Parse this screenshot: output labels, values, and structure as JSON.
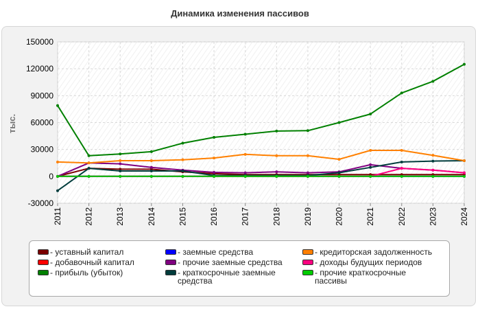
{
  "chart_data": {
    "type": "line",
    "title": "Динамика изменения пассивов",
    "ylabel": "тыс.",
    "xlabel": "",
    "x": [
      2011,
      2012,
      2013,
      2014,
      2015,
      2016,
      2017,
      2018,
      2019,
      2020,
      2021,
      2022,
      2023,
      2024
    ],
    "ylim": [
      -30000,
      150000
    ],
    "yticks": [
      -30000,
      0,
      30000,
      60000,
      90000,
      120000,
      150000
    ],
    "grid": true,
    "legend_position": "bottom",
    "series": [
      {
        "name": "уставный капитал",
        "color": "#7b0000",
        "values": [
          0,
          9000,
          8000,
          8000,
          5000,
          3000,
          2000,
          2000,
          2000,
          2000,
          2000,
          2000,
          2000,
          2000
        ]
      },
      {
        "name": "добавочный капитал",
        "color": "#ff0000",
        "values": [
          0,
          0,
          0,
          0,
          0,
          0,
          0,
          0,
          0,
          0,
          0,
          0,
          0,
          0
        ]
      },
      {
        "name": "прибыль (убыток)",
        "color": "#008000",
        "values": [
          79000,
          23000,
          25000,
          27500,
          37000,
          43500,
          47000,
          50500,
          51000,
          60000,
          69500,
          93000,
          106000,
          125000
        ]
      },
      {
        "name": "заемные средства",
        "color": "#0000ff",
        "values": [
          0,
          0,
          0,
          0,
          0,
          0,
          0,
          0,
          0,
          0,
          0,
          0,
          0,
          0
        ]
      },
      {
        "name": "прочие заемные средства",
        "color": "#800080",
        "values": [
          0,
          15000,
          14000,
          10000,
          7000,
          4500,
          4000,
          5000,
          4000,
          5000,
          13000,
          9000,
          7000,
          4000
        ]
      },
      {
        "name": "краткосрочные заемные средства",
        "color": "#003c3c",
        "values": [
          -16000,
          9000,
          6000,
          6000,
          6000,
          1000,
          1000,
          1000,
          1000,
          4000,
          10000,
          16000,
          17000,
          17500
        ]
      },
      {
        "name": "кредиторская задолженность",
        "color": "#ff8000",
        "values": [
          16000,
          15000,
          17500,
          17500,
          18500,
          20500,
          24500,
          23000,
          23000,
          19000,
          29000,
          29000,
          23500,
          17500
        ]
      },
      {
        "name": "доходы будущих периодов",
        "color": "#ff0080",
        "values": [
          0,
          0,
          0,
          0,
          0,
          0,
          0,
          0,
          0,
          0,
          0,
          9000,
          7000,
          4000
        ]
      },
      {
        "name": "прочие краткосрочные пассивы",
        "color": "#00cc00",
        "values": [
          0,
          0,
          0,
          0,
          0,
          0,
          0,
          0,
          0,
          0,
          0,
          0,
          0,
          0
        ]
      }
    ]
  }
}
